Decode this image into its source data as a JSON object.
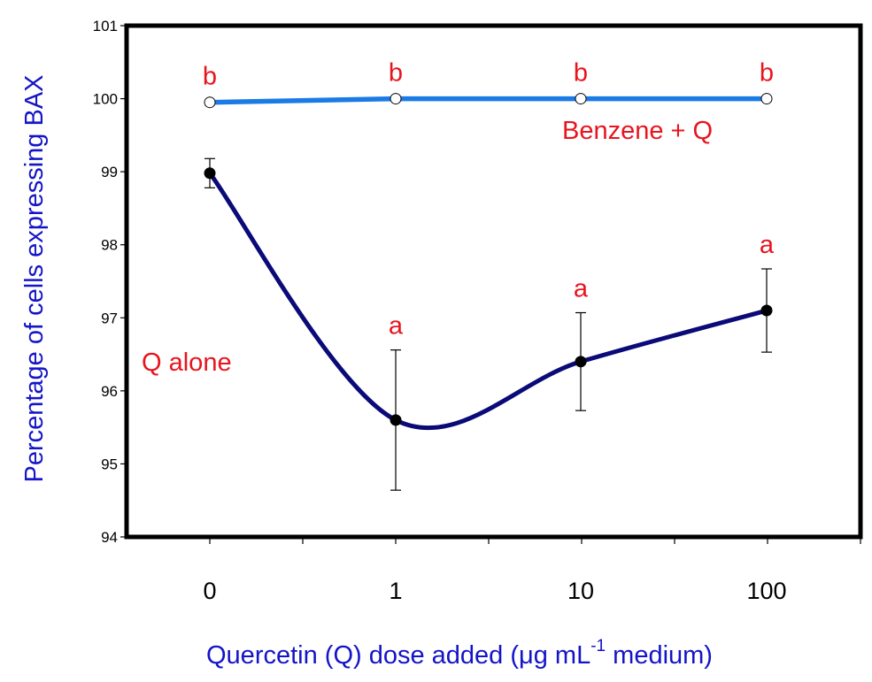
{
  "chart_data": {
    "type": "line",
    "title": "",
    "xlabel": "Quercetin (Q) dose added (μg mL",
    "xlabel_superscript": "-1",
    "xlabel_suffix": " medium)",
    "ylabel": "Percentage of cells expressing BAX",
    "categories": [
      "0",
      "1",
      "10",
      "100"
    ],
    "ylim": [
      94,
      101
    ],
    "yticks": [
      94,
      95,
      96,
      97,
      98,
      99,
      100,
      101
    ],
    "grid": false,
    "legend": "none",
    "series": [
      {
        "name": "Benzene + Q",
        "label": "Benzene + Q",
        "color": "#1a7ae6",
        "marker": "open-circle",
        "smooth": false,
        "values": [
          99.95,
          100.0,
          100.0,
          100.0
        ],
        "errors": [
          0,
          0,
          0,
          0
        ],
        "significance_letters": [
          "b",
          "b",
          "b",
          "b"
        ]
      },
      {
        "name": "Q alone",
        "label": "Q alone",
        "color": "#0a0a78",
        "marker": "filled-circle",
        "smooth": true,
        "values": [
          98.98,
          95.6,
          96.4,
          97.1
        ],
        "errors": [
          0.2,
          0.96,
          0.67,
          0.57
        ],
        "significance_letters": [
          "",
          "a",
          "a",
          "a"
        ]
      }
    ],
    "annotation_color": "#e8141e",
    "axis_title_color": "#1414c8"
  }
}
